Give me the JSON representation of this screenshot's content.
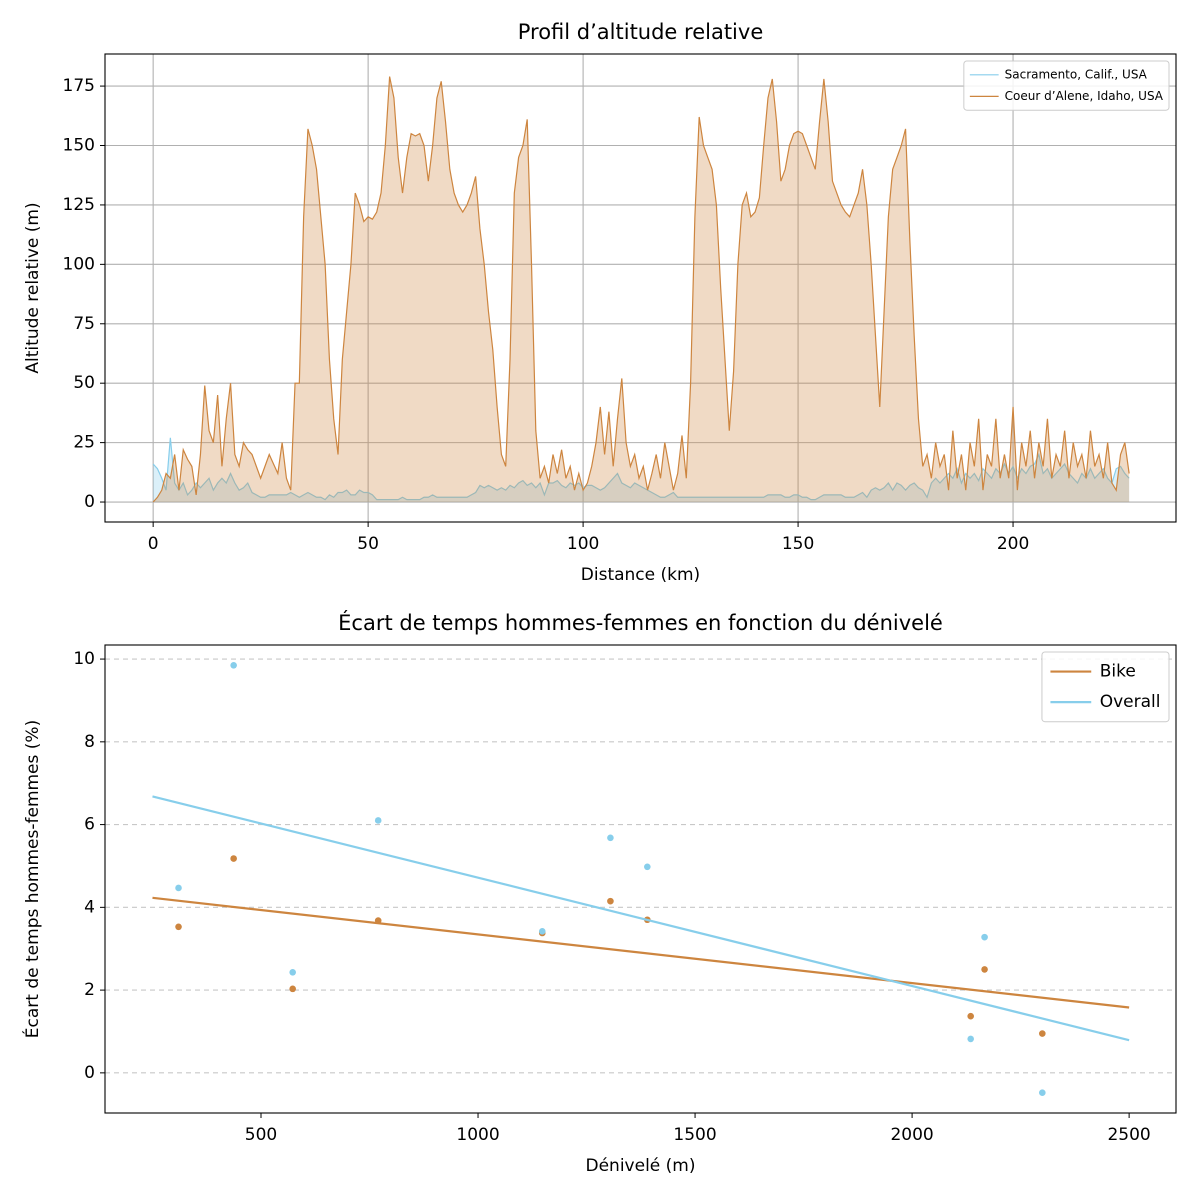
{
  "chart_data": [
    {
      "type": "area",
      "title": "Profil d’altitude relative",
      "xlabel": "Distance (km)",
      "ylabel": "Altitude relative (m)",
      "x": [
        0,
        1,
        2,
        3,
        4,
        5,
        6,
        7,
        8,
        9,
        10,
        11,
        12,
        13,
        14,
        15,
        16,
        17,
        18,
        19,
        20,
        21,
        22,
        23,
        24,
        25,
        26,
        27,
        28,
        29,
        30,
        31,
        32,
        33,
        34,
        35,
        36,
        37,
        38,
        39,
        40,
        41,
        42,
        43,
        44,
        45,
        46,
        47,
        48,
        49,
        50,
        51,
        52,
        53,
        54,
        55,
        56,
        57,
        58,
        59,
        60,
        61,
        62,
        63,
        64,
        65,
        66,
        67,
        68,
        69,
        70,
        71,
        72,
        73,
        74,
        75,
        76,
        77,
        78,
        79,
        80,
        81,
        82,
        83,
        84,
        85,
        86,
        87,
        88,
        89,
        90,
        91,
        92,
        93,
        94,
        95,
        96,
        97,
        98,
        99,
        100,
        101,
        102,
        103,
        104,
        105,
        106,
        107,
        108,
        109,
        110,
        111,
        112,
        113,
        114,
        115,
        116,
        117,
        118,
        119,
        120,
        121,
        122,
        123,
        124,
        125,
        126,
        127,
        128,
        129,
        130,
        131,
        132,
        133,
        134,
        135,
        136,
        137,
        138,
        139,
        140,
        141,
        142,
        143,
        144,
        145,
        146,
        147,
        148,
        149,
        150,
        151,
        152,
        153,
        154,
        155,
        156,
        157,
        158,
        159,
        160,
        161,
        162,
        163,
        164,
        165,
        166,
        167,
        168,
        169,
        170,
        171,
        172,
        173,
        174,
        175,
        176,
        177,
        178,
        179,
        180,
        181,
        182,
        183,
        184,
        185,
        186,
        187,
        188,
        189,
        190,
        191,
        192,
        193,
        194,
        195,
        196,
        197,
        198,
        199,
        200,
        201,
        202,
        203,
        204,
        205,
        206,
        207,
        208,
        209,
        210,
        211,
        212,
        213,
        214,
        215,
        216,
        217,
        218,
        219,
        220,
        221,
        222,
        223,
        224,
        225,
        226,
        227
      ],
      "series": [
        {
          "name": "Sacramento, Calif., USA",
          "color": "#87ceeb",
          "values": [
            16,
            14,
            10,
            5,
            27,
            8,
            5,
            8,
            3,
            5,
            8,
            6,
            8,
            10,
            5,
            8,
            10,
            8,
            12,
            8,
            5,
            6,
            8,
            4,
            3,
            2,
            2,
            3,
            3,
            3,
            3,
            3,
            4,
            3,
            2,
            3,
            4,
            3,
            2,
            2,
            1,
            3,
            2,
            4,
            4,
            5,
            3,
            3,
            5,
            4,
            4,
            3,
            1,
            1,
            1,
            1,
            1,
            1,
            2,
            1,
            1,
            1,
            1,
            2,
            2,
            3,
            2,
            2,
            2,
            2,
            2,
            2,
            2,
            2,
            3,
            4,
            7,
            6,
            7,
            6,
            5,
            6,
            5,
            7,
            6,
            8,
            9,
            7,
            8,
            6,
            8,
            3,
            8,
            8,
            9,
            7,
            6,
            8,
            7,
            8,
            6,
            7,
            7,
            6,
            5,
            6,
            8,
            10,
            12,
            8,
            7,
            6,
            8,
            7,
            6,
            5,
            4,
            3,
            2,
            2,
            3,
            4,
            2,
            2,
            2,
            2,
            2,
            2,
            2,
            2,
            2,
            2,
            2,
            2,
            2,
            2,
            2,
            2,
            2,
            2,
            2,
            2,
            2,
            3,
            3,
            3,
            3,
            2,
            2,
            3,
            3,
            2,
            2,
            1,
            1,
            2,
            3,
            3,
            3,
            3,
            3,
            2,
            2,
            2,
            3,
            4,
            2,
            5,
            6,
            5,
            6,
            8,
            5,
            8,
            7,
            5,
            7,
            8,
            6,
            5,
            2,
            8,
            10,
            8,
            10,
            12,
            10,
            14,
            8,
            12,
            10,
            12,
            9,
            14,
            12,
            10,
            14,
            12,
            16,
            12,
            15,
            10,
            14,
            12,
            15,
            16,
            20,
            12,
            14,
            10,
            12,
            14,
            16,
            12,
            10,
            8,
            12,
            10,
            14,
            10,
            12,
            14,
            10,
            8,
            14,
            15,
            12,
            10
          ]
        },
        {
          "name": "Coeur d’Alene, Idaho, USA",
          "color": "#cd853f",
          "values": [
            0,
            2,
            5,
            12,
            10,
            20,
            5,
            22,
            18,
            15,
            3,
            20,
            49,
            30,
            25,
            45,
            15,
            35,
            50,
            20,
            15,
            25,
            22,
            20,
            15,
            10,
            15,
            20,
            16,
            12,
            25,
            10,
            5,
            50,
            50,
            120,
            157,
            150,
            140,
            120,
            100,
            60,
            35,
            20,
            60,
            80,
            100,
            130,
            125,
            118,
            120,
            119,
            122,
            130,
            150,
            179,
            170,
            145,
            130,
            145,
            155,
            154,
            155,
            150,
            135,
            150,
            170,
            177,
            160,
            140,
            130,
            125,
            122,
            125,
            130,
            137,
            115,
            100,
            80,
            64,
            40,
            20,
            15,
            60,
            130,
            145,
            150,
            161,
            100,
            30,
            10,
            15,
            8,
            20,
            12,
            22,
            10,
            15,
            5,
            12,
            5,
            8,
            15,
            25,
            40,
            20,
            38,
            15,
            35,
            52,
            25,
            15,
            20,
            10,
            15,
            5,
            12,
            20,
            10,
            25,
            15,
            5,
            12,
            28,
            10,
            50,
            120,
            162,
            150,
            145,
            140,
            125,
            90,
            60,
            30,
            55,
            100,
            125,
            130,
            120,
            122,
            128,
            150,
            170,
            178,
            160,
            135,
            140,
            150,
            155,
            156,
            155,
            150,
            145,
            140,
            160,
            178,
            160,
            135,
            130,
            125,
            122,
            120,
            125,
            130,
            140,
            125,
            100,
            70,
            40,
            80,
            120,
            140,
            145,
            150,
            157,
            110,
            70,
            35,
            15,
            20,
            10,
            25,
            15,
            20,
            5,
            30,
            10,
            20,
            5,
            25,
            15,
            35,
            5,
            20,
            15,
            35,
            10,
            20,
            10,
            40,
            5,
            25,
            15,
            30,
            10,
            25,
            15,
            35,
            10,
            20,
            15,
            30,
            10,
            25,
            15,
            20,
            10,
            30,
            15,
            20,
            10,
            25,
            8,
            5,
            20,
            25,
            12
          ]
        }
      ],
      "xlim": [
        -11.2,
        237.9
      ],
      "ylim": [
        -8.4,
        188.5
      ],
      "xticks": [
        0,
        50,
        100,
        150,
        200
      ],
      "yticks": [
        0,
        25,
        50,
        75,
        100,
        125,
        150,
        175
      ],
      "grid": "both",
      "grid_style": "solid",
      "legend": "upper right"
    },
    {
      "type": "scatter",
      "title": "Écart de temps hommes-femmes en fonction du dénivelé",
      "xlabel": "Dénivelé (m)",
      "ylabel": "Écart de temps hommes-femmes (%)",
      "series": [
        {
          "name": "Bike",
          "color": "#cd853f",
          "x": [
            310,
            437,
            573,
            770,
            1148,
            1305,
            1390,
            2135,
            2167,
            2300
          ],
          "values": [
            3.53,
            5.18,
            2.03,
            3.68,
            3.38,
            4.15,
            3.7,
            1.37,
            2.5,
            0.95
          ],
          "fit": {
            "x": [
              250,
              2500
            ],
            "values": [
              4.23,
              1.58
            ]
          }
        },
        {
          "name": "Overall",
          "color": "#87ceeb",
          "x": [
            310,
            437,
            573,
            770,
            1148,
            1305,
            1390,
            2135,
            2167,
            2300
          ],
          "values": [
            4.47,
            9.85,
            2.43,
            6.1,
            3.42,
            5.68,
            4.98,
            0.82,
            3.28,
            -0.48
          ],
          "fit": {
            "x": [
              250,
              2500
            ],
            "values": [
              6.68,
              0.79
            ]
          }
        }
      ],
      "xlim": [
        140.6,
        2608
      ],
      "ylim": [
        -0.97,
        10.34
      ],
      "xticks": [
        500,
        1000,
        1500,
        2000,
        2500
      ],
      "yticks": [
        0,
        2,
        4,
        6,
        8,
        10
      ],
      "grid": "y",
      "grid_style": "dashed",
      "legend": "upper right"
    }
  ]
}
